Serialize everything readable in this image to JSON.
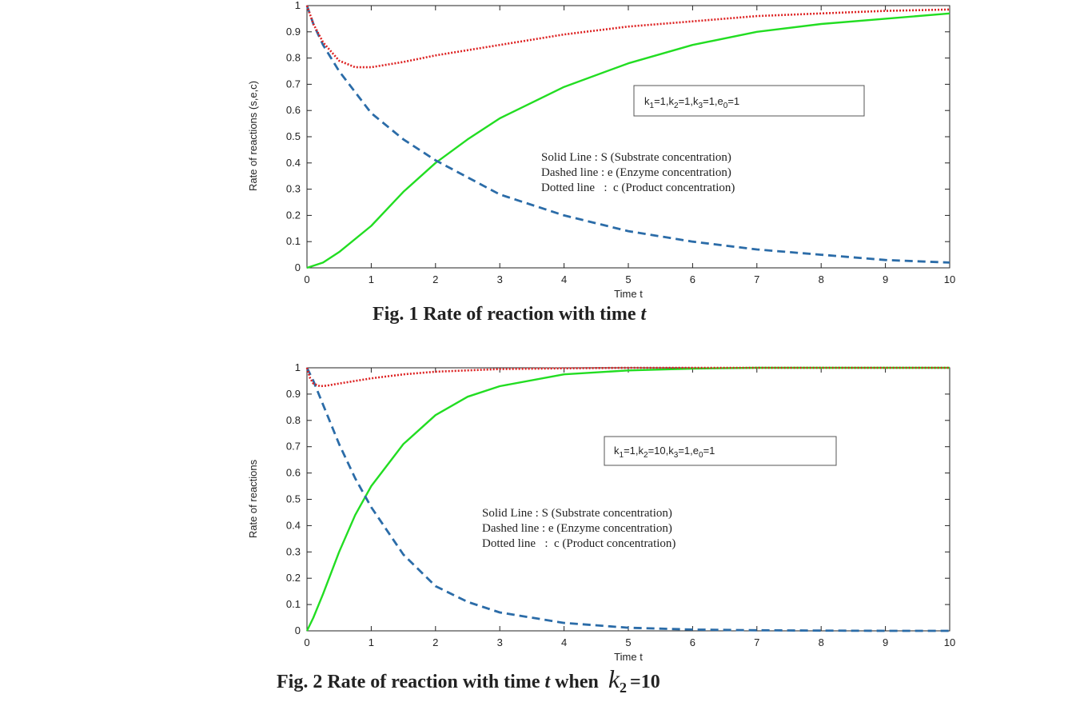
{
  "chart_data": [
    {
      "type": "line",
      "caption": "Fig. 1 Rate of reaction with time t",
      "caption_main": "Fig. 1 Rate of reaction with time",
      "caption_var": "t",
      "xlabel": "Time t",
      "ylabel": "Rate of reactions (s,e,c)",
      "xlim": [
        0,
        10
      ],
      "ylim": [
        0,
        1
      ],
      "xticks": [
        "0",
        "1",
        "2",
        "3",
        "4",
        "5",
        "6",
        "7",
        "8",
        "9",
        "10"
      ],
      "yticks": [
        "0",
        "0.1",
        "0.2",
        "0.3",
        "0.4",
        "0.5",
        "0.6",
        "0.7",
        "0.8",
        "0.9",
        "1"
      ],
      "grid": false,
      "params_box": {
        "k1": "1",
        "k2": "1",
        "k3": "1",
        "e0": "1"
      },
      "legend_lines": [
        "Solid Line : S (Substrate concentration)",
        "Dashed line : e (Enzyme concentration)",
        "Dotted line   :  c (Product concentration)"
      ],
      "series": [
        {
          "style": "solid",
          "color": "#22dd22",
          "x": [
            0,
            0.25,
            0.5,
            1,
            1.5,
            2,
            2.5,
            3,
            4,
            5,
            6,
            7,
            8,
            9,
            10
          ],
          "y": [
            0,
            0.02,
            0.06,
            0.16,
            0.29,
            0.4,
            0.49,
            0.57,
            0.69,
            0.78,
            0.85,
            0.9,
            0.93,
            0.95,
            0.97
          ]
        },
        {
          "style": "dashed",
          "color": "#2b6ca8",
          "x": [
            0,
            0.1,
            0.25,
            0.5,
            1,
            1.5,
            2,
            3,
            4,
            5,
            6,
            7,
            8,
            9,
            10
          ],
          "y": [
            1,
            0.93,
            0.85,
            0.75,
            0.59,
            0.49,
            0.41,
            0.28,
            0.2,
            0.14,
            0.1,
            0.07,
            0.05,
            0.03,
            0.02
          ]
        },
        {
          "style": "dotted",
          "color": "#dd2222",
          "x": [
            0,
            0.1,
            0.25,
            0.5,
            0.75,
            1,
            1.5,
            2,
            3,
            4,
            5,
            6,
            7,
            8,
            9,
            10
          ],
          "y": [
            1,
            0.93,
            0.86,
            0.79,
            0.765,
            0.765,
            0.785,
            0.81,
            0.85,
            0.89,
            0.92,
            0.94,
            0.96,
            0.97,
            0.98,
            0.985
          ]
        }
      ]
    },
    {
      "type": "line",
      "caption": "Fig. 2 Rate of reaction with time t when k2 =10",
      "caption_main": "Fig. 2 Rate of reaction with time",
      "caption_var": "t",
      "caption_when": "when",
      "caption_k": "k",
      "caption_k_sub": "2",
      "caption_eq": "=10",
      "xlabel": "Time t",
      "ylabel": "Rate of reactions",
      "xlim": [
        0,
        10
      ],
      "ylim": [
        0,
        1
      ],
      "xticks": [
        "0",
        "1",
        "2",
        "3",
        "4",
        "5",
        "6",
        "7",
        "8",
        "9",
        "10"
      ],
      "yticks": [
        "0",
        "0.1",
        "0.2",
        "0.3",
        "0.4",
        "0.5",
        "0.6",
        "0.7",
        "0.8",
        "0.9",
        "1"
      ],
      "grid": false,
      "params_box": {
        "k1": "1",
        "k2": "10",
        "k3": "1",
        "e0": "1"
      },
      "legend_lines": [
        "Solid Line : S (Substrate concentration)",
        "Dashed line : e (Enzyme concentration)",
        "Dotted line   :  c (Product concentration)"
      ],
      "series": [
        {
          "style": "solid",
          "color": "#22dd22",
          "x": [
            0,
            0.1,
            0.25,
            0.5,
            0.75,
            1,
            1.5,
            2,
            2.5,
            3,
            4,
            5,
            6,
            7,
            8,
            9,
            10
          ],
          "y": [
            0,
            0.05,
            0.14,
            0.3,
            0.44,
            0.55,
            0.71,
            0.82,
            0.89,
            0.93,
            0.975,
            0.99,
            0.997,
            1,
            1,
            1,
            1
          ]
        },
        {
          "style": "dashed",
          "color": "#2b6ca8",
          "x": [
            0,
            0.1,
            0.25,
            0.5,
            0.75,
            1,
            1.5,
            2,
            2.5,
            3,
            4,
            5,
            6,
            7,
            8,
            9,
            10
          ],
          "y": [
            1,
            0.95,
            0.86,
            0.71,
            0.58,
            0.47,
            0.29,
            0.17,
            0.11,
            0.07,
            0.03,
            0.012,
            0.005,
            0.002,
            0.001,
            0,
            0
          ]
        },
        {
          "style": "dotted",
          "color": "#dd2222",
          "x": [
            0,
            0.05,
            0.1,
            0.2,
            0.3,
            0.5,
            1,
            1.5,
            2,
            3,
            4,
            5,
            6,
            7,
            8,
            9,
            10
          ],
          "y": [
            1,
            0.96,
            0.94,
            0.93,
            0.932,
            0.94,
            0.96,
            0.975,
            0.985,
            0.995,
            0.998,
            1,
            1,
            1,
            1,
            1,
            1
          ]
        }
      ]
    }
  ]
}
